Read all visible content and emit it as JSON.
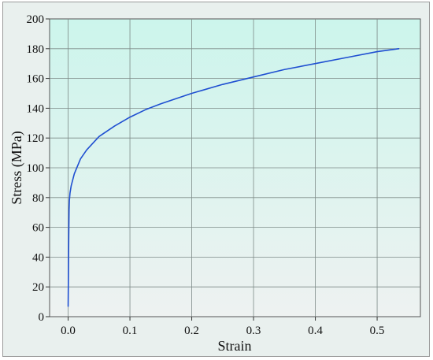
{
  "chart_data": {
    "type": "line",
    "title": "",
    "xlabel": "Strain",
    "ylabel": "Stress (MPa)",
    "xlim": [
      -0.03,
      0.57
    ],
    "ylim": [
      0,
      200
    ],
    "xticks": [
      0.0,
      0.1,
      0.2,
      0.3,
      0.4,
      0.5
    ],
    "xtick_labels": [
      "0.0",
      "0.1",
      "0.2",
      "0.3",
      "0.4",
      "0.5"
    ],
    "yticks": [
      0,
      20,
      40,
      60,
      80,
      100,
      120,
      140,
      160,
      180,
      200
    ],
    "ytick_labels": [
      "0",
      "20",
      "40",
      "60",
      "80",
      "100",
      "120",
      "140",
      "160",
      "180",
      "200"
    ],
    "grid": true,
    "legend": "none",
    "background_gradient": [
      "#ccf5ec",
      "#eef2f1"
    ],
    "series": [
      {
        "color": "#1f4fd1",
        "x": [
          0.0,
          0.0005,
          0.001,
          0.0015,
          0.002,
          0.003,
          0.005,
          0.01,
          0.02,
          0.03,
          0.05,
          0.075,
          0.1,
          0.125,
          0.15,
          0.2,
          0.25,
          0.3,
          0.35,
          0.4,
          0.45,
          0.5,
          0.535
        ],
        "y": [
          7,
          30,
          55,
          72,
          78,
          83,
          88,
          96,
          106,
          112,
          121,
          128,
          134,
          139,
          143,
          150,
          156,
          161,
          166,
          170,
          174,
          178,
          180
        ]
      }
    ]
  }
}
